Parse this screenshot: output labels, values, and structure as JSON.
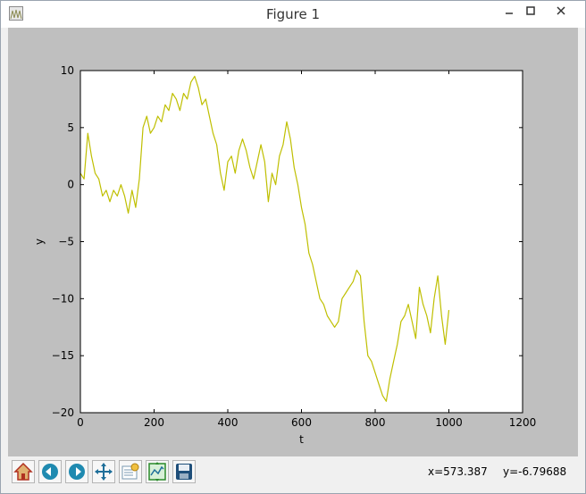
{
  "window": {
    "title": "Figure 1",
    "accent_color": "#c0c000"
  },
  "toolbar": {
    "buttons": [
      {
        "name": "home-icon",
        "label": "Home"
      },
      {
        "name": "back-icon",
        "label": "Back"
      },
      {
        "name": "forward-icon",
        "label": "Forward"
      },
      {
        "name": "pan-icon",
        "label": "Pan"
      },
      {
        "name": "zoom-icon",
        "label": "Zoom"
      },
      {
        "name": "subplots-icon",
        "label": "Subplots"
      },
      {
        "name": "save-icon",
        "label": "Save"
      }
    ],
    "x_readout": "x=573.387",
    "y_readout": "y=-6.79688"
  },
  "chart_data": {
    "type": "line",
    "title": "",
    "xlabel": "t",
    "ylabel": "y",
    "xlim": [
      0,
      1200
    ],
    "ylim": [
      -20,
      10
    ],
    "xticks": [
      0,
      200,
      400,
      600,
      800,
      1000,
      1200
    ],
    "yticks": [
      -20,
      -15,
      -10,
      -5,
      0,
      5,
      10
    ],
    "grid": false,
    "series": [
      {
        "color": "#bfbf00",
        "x": [
          0,
          10,
          20,
          30,
          40,
          50,
          60,
          70,
          80,
          90,
          100,
          110,
          120,
          130,
          140,
          150,
          160,
          170,
          180,
          190,
          200,
          210,
          220,
          230,
          240,
          250,
          260,
          270,
          280,
          290,
          300,
          310,
          320,
          330,
          340,
          350,
          360,
          370,
          380,
          390,
          400,
          410,
          420,
          430,
          440,
          450,
          460,
          470,
          480,
          490,
          500,
          510,
          520,
          530,
          540,
          550,
          560,
          570,
          580,
          590,
          600,
          610,
          620,
          630,
          640,
          650,
          660,
          670,
          680,
          690,
          700,
          710,
          720,
          730,
          740,
          750,
          760,
          770,
          780,
          790,
          800,
          810,
          820,
          830,
          840,
          850,
          860,
          870,
          880,
          890,
          900,
          910,
          920,
          930,
          940,
          950,
          960,
          970,
          980,
          990,
          1000
        ],
        "y": [
          1.0,
          0.5,
          4.5,
          2.5,
          1.0,
          0.5,
          -1.0,
          -0.5,
          -1.5,
          -0.5,
          -1.0,
          0.0,
          -1.0,
          -2.5,
          -0.5,
          -2.0,
          0.5,
          5.0,
          6.0,
          4.5,
          5.0,
          6.0,
          5.5,
          7.0,
          6.5,
          8.0,
          7.5,
          6.5,
          8.0,
          7.5,
          9.0,
          9.5,
          8.5,
          7.0,
          7.5,
          6.0,
          4.5,
          3.5,
          1.0,
          -0.5,
          2.0,
          2.5,
          1.0,
          3.0,
          4.0,
          3.0,
          1.5,
          0.5,
          2.0,
          3.5,
          2.0,
          -1.5,
          1.0,
          0.0,
          2.5,
          3.5,
          5.5,
          4.0,
          1.5,
          0.0,
          -2.0,
          -3.5,
          -6.0,
          -7.0,
          -8.5,
          -10.0,
          -10.5,
          -11.5,
          -12.0,
          -12.5,
          -12.0,
          -10.0,
          -9.5,
          -9.0,
          -8.5,
          -7.5,
          -8.0,
          -12.0,
          -15.0,
          -15.5,
          -16.5,
          -17.5,
          -18.5,
          -19.0,
          -17.0,
          -15.5,
          -14.0,
          -12.0,
          -11.5,
          -10.5,
          -12.0,
          -13.5,
          -9.0,
          -10.5,
          -11.5,
          -13.0,
          -10.0,
          -8.0,
          -11.5,
          -14.0,
          -11.0
        ]
      }
    ]
  }
}
